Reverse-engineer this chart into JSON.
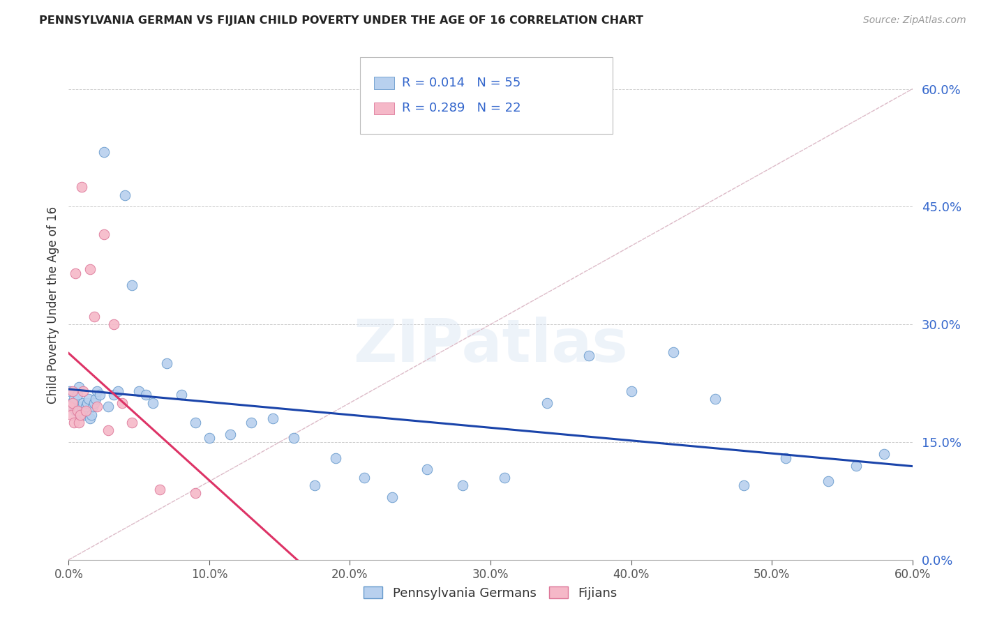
{
  "title": "PENNSYLVANIA GERMAN VS FIJIAN CHILD POVERTY UNDER THE AGE OF 16 CORRELATION CHART",
  "source": "Source: ZipAtlas.com",
  "ylabel": "Child Poverty Under the Age of 16",
  "xmin": 0.0,
  "xmax": 0.6,
  "ymin": 0.0,
  "ymax": 0.65,
  "yticks": [
    0.0,
    0.15,
    0.3,
    0.45,
    0.6
  ],
  "xticks": [
    0.0,
    0.1,
    0.2,
    0.3,
    0.4,
    0.5,
    0.6
  ],
  "grid_color": "#cccccc",
  "background_color": "#ffffff",
  "pg_color": "#b8d0ee",
  "pg_edge_color": "#6699cc",
  "fj_color": "#f5b8c8",
  "fj_edge_color": "#dd7799",
  "pg_label": "Pennsylvania Germans",
  "fj_label": "Fijians",
  "pg_R": "0.014",
  "pg_N": "55",
  "fj_R": "0.289",
  "fj_N": "22",
  "pg_trend_color": "#1a44aa",
  "fj_trend_color": "#dd3366",
  "diag_color": "#ddbbc8",
  "R_N_color": "#3366cc",
  "watermark": "ZIPatlas",
  "pg_x": [
    0.001,
    0.002,
    0.003,
    0.004,
    0.005,
    0.006,
    0.007,
    0.008,
    0.009,
    0.01,
    0.011,
    0.012,
    0.013,
    0.014,
    0.015,
    0.016,
    0.017,
    0.018,
    0.019,
    0.02,
    0.022,
    0.025,
    0.028,
    0.032,
    0.035,
    0.04,
    0.045,
    0.05,
    0.055,
    0.06,
    0.07,
    0.08,
    0.09,
    0.1,
    0.115,
    0.13,
    0.145,
    0.16,
    0.175,
    0.19,
    0.21,
    0.23,
    0.255,
    0.28,
    0.31,
    0.34,
    0.37,
    0.4,
    0.43,
    0.46,
    0.48,
    0.51,
    0.54,
    0.56,
    0.58
  ],
  "pg_y": [
    0.215,
    0.2,
    0.195,
    0.205,
    0.19,
    0.21,
    0.22,
    0.185,
    0.195,
    0.2,
    0.185,
    0.195,
    0.2,
    0.205,
    0.18,
    0.185,
    0.195,
    0.2,
    0.205,
    0.215,
    0.21,
    0.52,
    0.195,
    0.21,
    0.215,
    0.465,
    0.35,
    0.215,
    0.21,
    0.2,
    0.25,
    0.21,
    0.175,
    0.155,
    0.16,
    0.175,
    0.18,
    0.155,
    0.095,
    0.13,
    0.105,
    0.08,
    0.115,
    0.095,
    0.105,
    0.2,
    0.26,
    0.215,
    0.265,
    0.205,
    0.095,
    0.13,
    0.1,
    0.12,
    0.135
  ],
  "fj_x": [
    0.001,
    0.002,
    0.003,
    0.003,
    0.004,
    0.005,
    0.006,
    0.007,
    0.008,
    0.009,
    0.01,
    0.012,
    0.015,
    0.018,
    0.02,
    0.025,
    0.028,
    0.032,
    0.038,
    0.045,
    0.065,
    0.09
  ],
  "fj_y": [
    0.195,
    0.185,
    0.2,
    0.215,
    0.175,
    0.365,
    0.19,
    0.175,
    0.185,
    0.475,
    0.215,
    0.19,
    0.37,
    0.31,
    0.195,
    0.415,
    0.165,
    0.3,
    0.2,
    0.175,
    0.09,
    0.085
  ]
}
